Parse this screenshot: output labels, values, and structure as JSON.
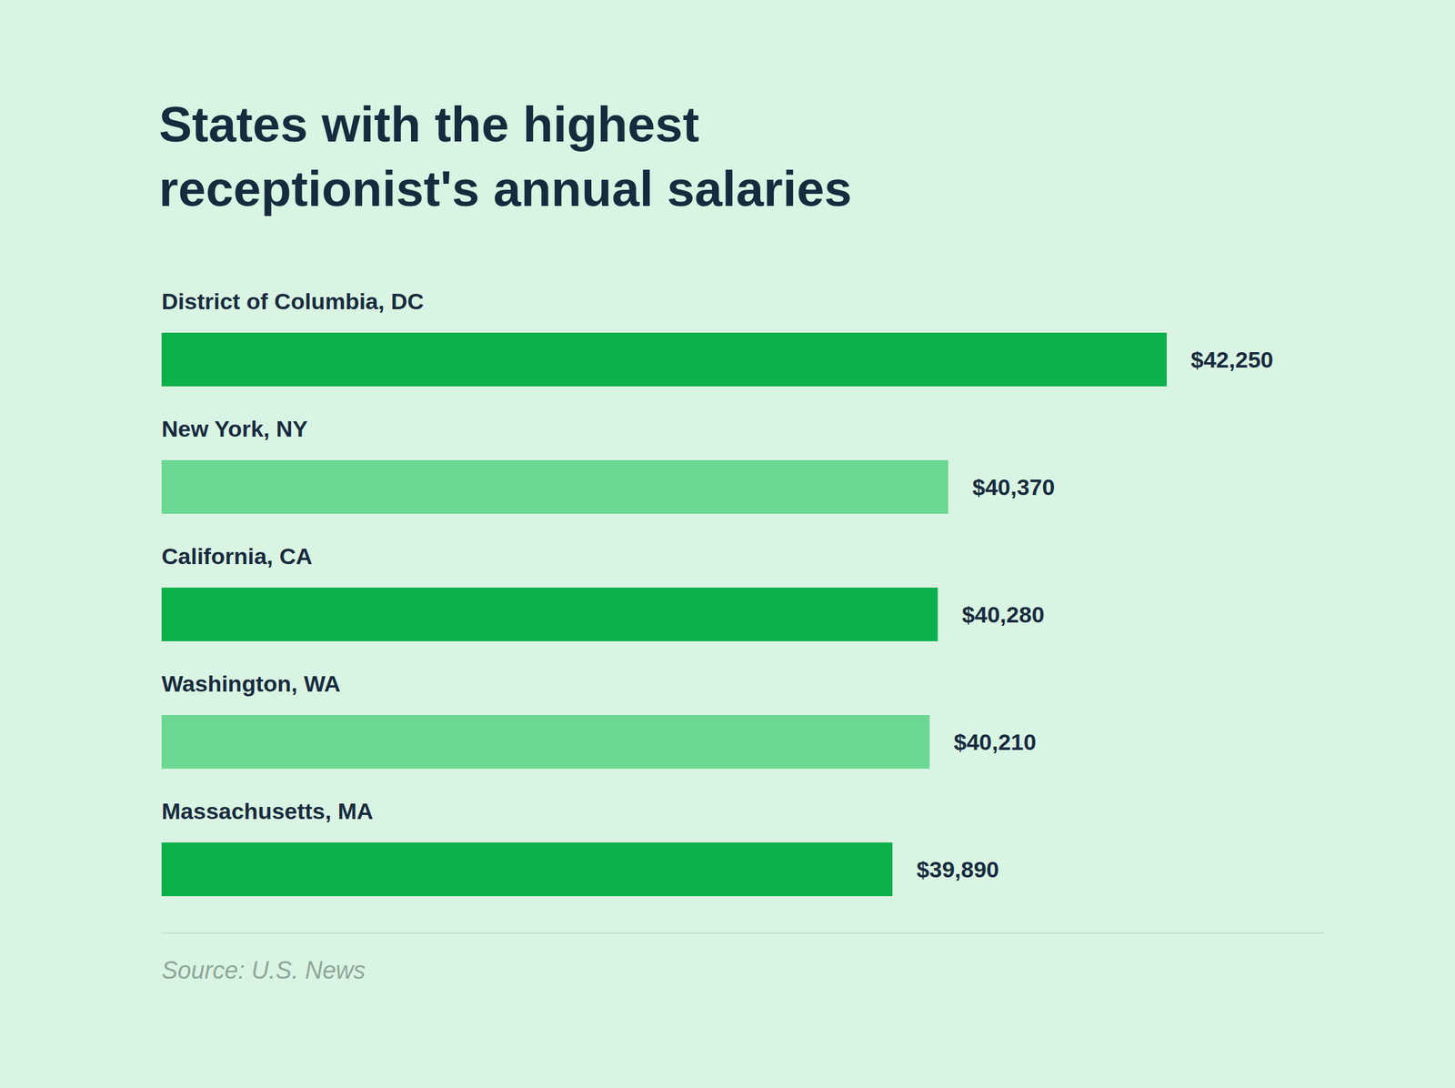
{
  "chart_data": {
    "type": "bar",
    "orientation": "horizontal",
    "title": "States with the highest receptionist's annual salaries",
    "source": "Source: U.S. News",
    "categories": [
      "District of Columbia, DC",
      "New York, NY",
      "California, CA",
      "Washington, WA",
      "Massachusetts, MA"
    ],
    "values": [
      42250,
      40370,
      40280,
      40210,
      39890
    ],
    "value_labels": [
      "$42,250",
      "$40,370",
      "$40,280",
      "$40,210",
      "$39,890"
    ],
    "colors": [
      "#0cb14b",
      "#6cd894",
      "#0cb14b",
      "#6cd894",
      "#0cb14b"
    ],
    "xlim": [
      33600,
      43600
    ],
    "data_labels": true,
    "tick_labels": false,
    "grid": false
  }
}
